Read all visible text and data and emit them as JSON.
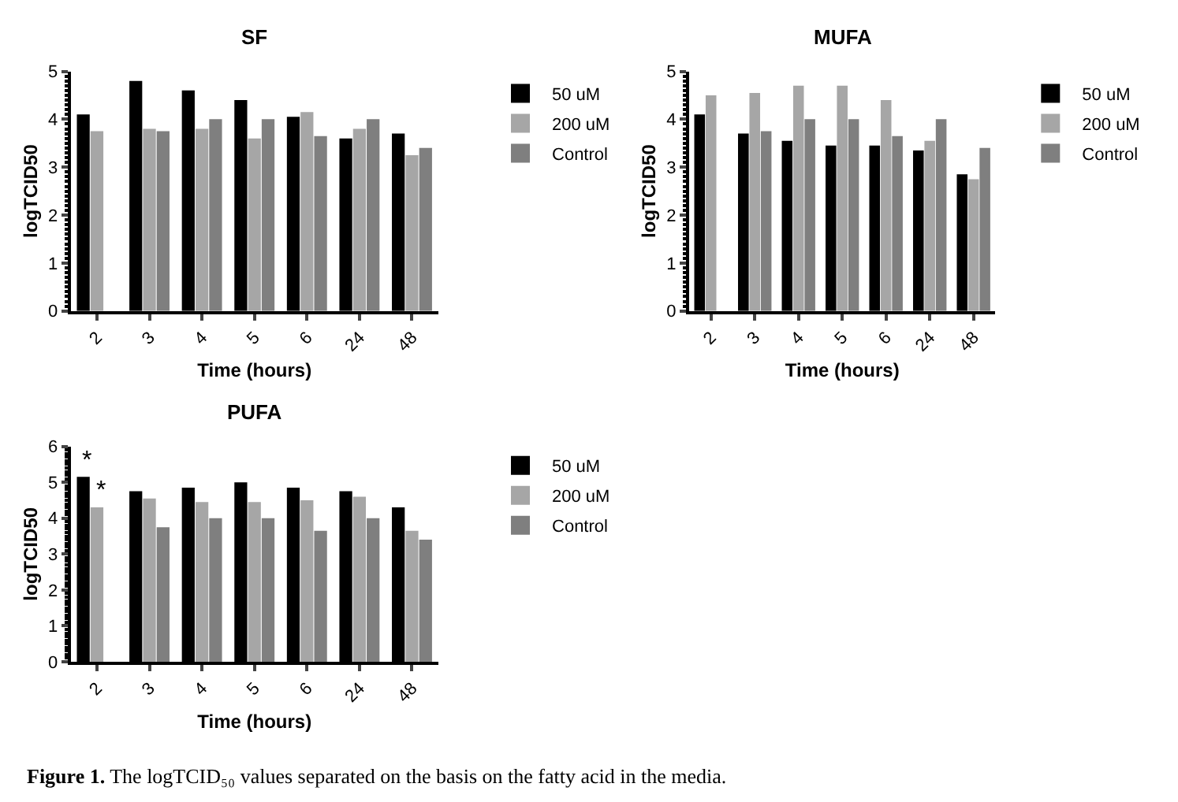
{
  "chart_data": [
    {
      "type": "bar",
      "title": "SF",
      "xlabel": "Time (hours)",
      "ylabel": "logTCID50",
      "categories": [
        "2",
        "3",
        "4",
        "5",
        "6",
        "24",
        "48"
      ],
      "ylim": [
        0,
        5
      ],
      "yticks": [
        0,
        1,
        2,
        3,
        4,
        5
      ],
      "legend": "top right",
      "series": [
        {
          "name": "50 uM",
          "color": "#000000",
          "values": [
            4.1,
            4.8,
            4.6,
            4.4,
            4.05,
            3.6,
            3.7
          ]
        },
        {
          "name": "200 uM",
          "color": "#a6a6a6",
          "values": [
            3.75,
            3.8,
            3.8,
            3.6,
            4.15,
            3.8,
            3.25
          ]
        },
        {
          "name": "Control",
          "color": "#7f7f7f",
          "values": [
            null,
            3.75,
            4.0,
            4.0,
            3.65,
            4.0,
            3.4
          ]
        }
      ]
    },
    {
      "type": "bar",
      "title": "MUFA",
      "xlabel": "Time (hours)",
      "ylabel": "logTCID50",
      "categories": [
        "2",
        "3",
        "4",
        "5",
        "6",
        "24",
        "48"
      ],
      "ylim": [
        0,
        5
      ],
      "yticks": [
        0,
        1,
        2,
        3,
        4,
        5
      ],
      "legend": "top right",
      "series": [
        {
          "name": "50 uM",
          "color": "#000000",
          "values": [
            4.1,
            3.7,
            3.55,
            3.45,
            3.45,
            3.35,
            2.85
          ]
        },
        {
          "name": "200 uM",
          "color": "#a6a6a6",
          "values": [
            4.5,
            4.55,
            4.7,
            4.7,
            4.4,
            3.55,
            2.75
          ]
        },
        {
          "name": "Control",
          "color": "#7f7f7f",
          "values": [
            null,
            3.75,
            4.0,
            4.0,
            3.65,
            4.0,
            3.4
          ]
        }
      ]
    },
    {
      "type": "bar",
      "title": "PUFA",
      "xlabel": "Time (hours)",
      "ylabel": "logTCID50",
      "categories": [
        "2",
        "3",
        "4",
        "5",
        "6",
        "24",
        "48"
      ],
      "ylim": [
        0,
        6
      ],
      "yticks": [
        0,
        1,
        2,
        3,
        4,
        5,
        6
      ],
      "legend": "top right",
      "series": [
        {
          "name": "50 uM",
          "color": "#000000",
          "values": [
            5.15,
            4.75,
            4.85,
            5.0,
            4.85,
            4.75,
            4.3
          ]
        },
        {
          "name": "200 uM",
          "color": "#a6a6a6",
          "values": [
            4.3,
            4.55,
            4.45,
            4.45,
            4.5,
            4.6,
            3.65
          ]
        },
        {
          "name": "Control",
          "color": "#7f7f7f",
          "values": [
            null,
            3.75,
            4.0,
            4.0,
            3.65,
            4.0,
            3.4
          ]
        }
      ],
      "annotations": [
        {
          "text": "*",
          "x": "2",
          "y": 5.15
        },
        {
          "text": "*",
          "x": "2",
          "y": 4.3
        },
        "Figure 1. The logTCID₅₀ values separated on the basis on the fatty acid in the media."
      ]
    }
  ]
}
